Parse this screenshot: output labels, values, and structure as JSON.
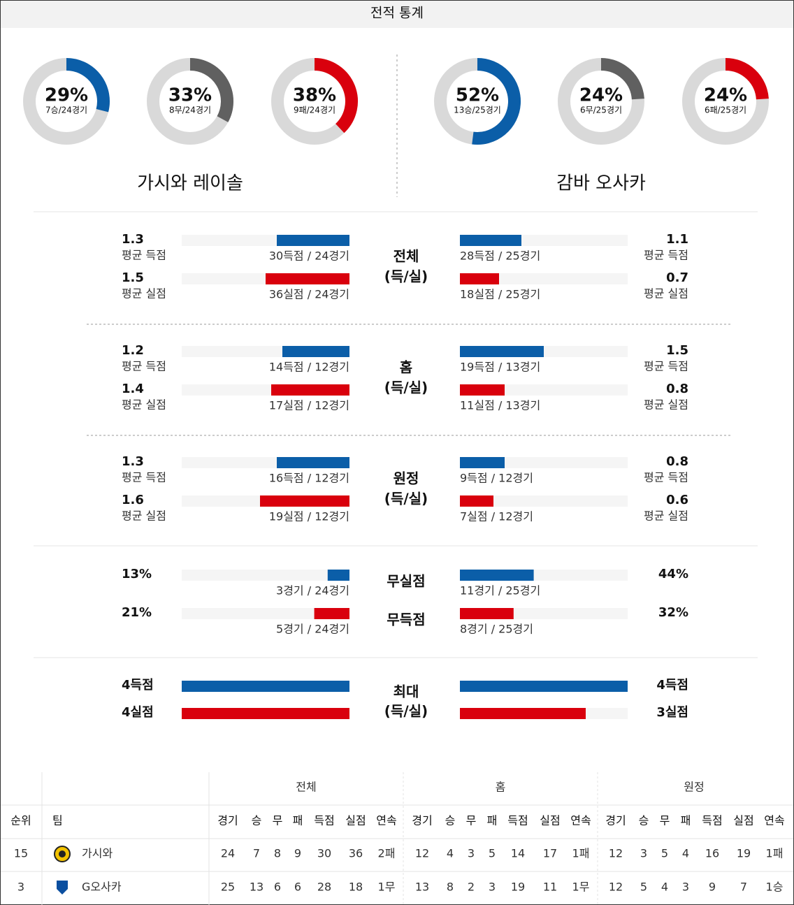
{
  "header": {
    "title": "전적 통계"
  },
  "teams": [
    {
      "name": "가시와 레이솔",
      "donuts": [
        {
          "value": 29,
          "value_label": "29%",
          "detail": "7승/24경기",
          "color": "#0b5ea8"
        },
        {
          "value": 33,
          "value_label": "33%",
          "detail": "8무/24경기",
          "color": "#606060"
        },
        {
          "value": 38,
          "value_label": "38%",
          "detail": "9패/24경기",
          "color": "#d9000d"
        }
      ]
    },
    {
      "name": "감바 오사카",
      "donuts": [
        {
          "value": 52,
          "value_label": "52%",
          "detail": "13승/25경기",
          "color": "#0b5ea8"
        },
        {
          "value": 24,
          "value_label": "24%",
          "detail": "6무/25경기",
          "color": "#606060"
        },
        {
          "value": 24,
          "value_label": "24%",
          "detail": "6패/25경기",
          "color": "#d9000d"
        }
      ]
    }
  ],
  "stats": {
    "sections": [
      {
        "title": [
          "전체",
          "(득/실)"
        ],
        "xlim": [
          0,
          3
        ],
        "rows": [
          {
            "color": "#0b5ea8",
            "home": {
              "value": 1.3,
              "metric": "평균 득점",
              "detail": "30득점 / 24경기"
            },
            "away": {
              "value": 1.1,
              "metric": "평균 득점",
              "detail": "28득점 / 25경기"
            }
          },
          {
            "color": "#d9000d",
            "home": {
              "value": 1.5,
              "metric": "평균 실점",
              "detail": "36실점 / 24경기"
            },
            "away": {
              "value": 0.7,
              "metric": "평균 실점",
              "detail": "18실점 / 25경기"
            }
          }
        ]
      },
      {
        "title": [
          "홈",
          "(득/실)"
        ],
        "xlim": [
          0,
          3
        ],
        "rows": [
          {
            "color": "#0b5ea8",
            "home": {
              "value": 1.2,
              "metric": "평균 득점",
              "detail": "14득점 / 12경기"
            },
            "away": {
              "value": 1.5,
              "metric": "평균 득점",
              "detail": "19득점 / 13경기"
            }
          },
          {
            "color": "#d9000d",
            "home": {
              "value": 1.4,
              "metric": "평균 실점",
              "detail": "17실점 / 12경기"
            },
            "away": {
              "value": 0.8,
              "metric": "평균 실점",
              "detail": "11실점 / 13경기"
            }
          }
        ]
      },
      {
        "title": [
          "원정",
          "(득/실)"
        ],
        "xlim": [
          0,
          3
        ],
        "rows": [
          {
            "color": "#0b5ea8",
            "home": {
              "value": 1.3,
              "metric": "평균 득점",
              "detail": "16득점 / 12경기"
            },
            "away": {
              "value": 0.8,
              "metric": "평균 득점",
              "detail": "9득점 / 12경기"
            }
          },
          {
            "color": "#d9000d",
            "home": {
              "value": 1.6,
              "metric": "평균 실점",
              "detail": "19실점 / 12경기"
            },
            "away": {
              "value": 0.6,
              "metric": "평균 실점",
              "detail": "7실점 / 12경기"
            }
          }
        ]
      },
      {
        "xlim": [
          0,
          100
        ],
        "rows": [
          {
            "label": "무실점",
            "color": "#0b5ea8",
            "home": {
              "value": 13,
              "value_label": "13%",
              "detail": "3경기 / 24경기"
            },
            "away": {
              "value": 44,
              "value_label": "44%",
              "detail": "11경기 / 25경기"
            }
          },
          {
            "label": "무득점",
            "color": "#d9000d",
            "home": {
              "value": 21,
              "value_label": "21%",
              "detail": "5경기 / 24경기"
            },
            "away": {
              "value": 32,
              "value_label": "32%",
              "detail": "8경기 / 25경기"
            }
          }
        ]
      },
      {
        "title": [
          "최대",
          "(득/실)"
        ],
        "xlim": [
          0,
          4
        ],
        "rows": [
          {
            "color": "#0b5ea8",
            "home": {
              "value": 4,
              "value_label": "4득점"
            },
            "away": {
              "value": 4,
              "value_label": "4득점"
            }
          },
          {
            "color": "#d9000d",
            "home": {
              "value": 4,
              "value_label": "4실점"
            },
            "away": {
              "value": 3,
              "value_label": "3실점"
            }
          }
        ]
      }
    ]
  },
  "table": {
    "groups": [
      "전체",
      "홈",
      "원정"
    ],
    "columns": [
      "순위",
      "팀",
      "경기",
      "승",
      "무",
      "패",
      "득점",
      "실점",
      "연속",
      "경기",
      "승",
      "무",
      "패",
      "득점",
      "실점",
      "연속",
      "경기",
      "승",
      "무",
      "패",
      "득점",
      "실점",
      "연속"
    ],
    "rows": [
      [
        15,
        "가시와",
        24,
        7,
        8,
        9,
        30,
        36,
        "2패",
        12,
        4,
        3,
        5,
        14,
        17,
        "1패",
        12,
        3,
        5,
        4,
        16,
        19,
        "1패"
      ],
      [
        3,
        "G오사카",
        25,
        13,
        6,
        6,
        28,
        18,
        "1무",
        13,
        8,
        2,
        3,
        19,
        11,
        "1무",
        12,
        5,
        4,
        3,
        9,
        7,
        "1승"
      ]
    ]
  }
}
